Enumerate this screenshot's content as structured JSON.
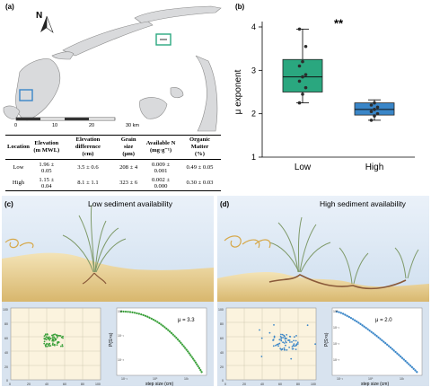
{
  "panels": {
    "a": "(a)",
    "b": "(b)",
    "c": "(c)",
    "d": "(d)"
  },
  "map": {
    "north_label": "N",
    "scale_ticks": [
      "0",
      "10",
      "20",
      "30 km"
    ]
  },
  "table": {
    "headers": [
      {
        "line1": "Location",
        "line2": ""
      },
      {
        "line1": "Elevation",
        "line2": "(m MWL)"
      },
      {
        "line1": "Elevation difference",
        "line2": "(cm)"
      },
      {
        "line1": "Grain size",
        "line2": "(μm)"
      },
      {
        "line1": "Available N",
        "line2": "(mg·g⁻¹)"
      },
      {
        "line1": "Organic Matter",
        "line2": "(%)"
      }
    ],
    "rows": [
      [
        "Low",
        "1.96 ± 0.05",
        "3.5 ± 0.6",
        "208 ± 4",
        "0.009 ± 0.001",
        "0.49 ± 0.05"
      ],
      [
        "High",
        "1.15 ± 0.04",
        "8.1 ± 1.1",
        "323 ± 6",
        "0.002 ± 0.000",
        "0.30 ± 0.03"
      ]
    ]
  },
  "chart_data": {
    "type": "box",
    "ylabel": "μ exponent",
    "categories": [
      "Low",
      "High"
    ],
    "ylim": [
      1,
      4
    ],
    "yticks": [
      1,
      2,
      3,
      4
    ],
    "significance": "**",
    "colors": [
      "#2aa77f",
      "#3a86c8"
    ],
    "boxes": [
      {
        "name": "Low",
        "min": 2.25,
        "q1": 2.5,
        "median": 2.85,
        "q3": 3.25,
        "max": 3.95,
        "points": [
          2.25,
          2.45,
          2.6,
          2.75,
          2.85,
          2.9,
          3.1,
          3.2,
          3.55,
          3.95
        ]
      },
      {
        "name": "High",
        "min": 1.85,
        "q1": 1.97,
        "median": 2.1,
        "q3": 2.25,
        "max": 2.32,
        "points": [
          1.85,
          1.95,
          2.0,
          2.05,
          2.1,
          2.15,
          2.2,
          2.25
        ]
      }
    ]
  },
  "scenes": {
    "c": {
      "title": "Low sediment availability",
      "mu_label": "μ = 3.3",
      "xlabel": "step size (cm)",
      "ylabel": "P(S>s)",
      "scatter_xticks": [
        "0",
        "20",
        "40",
        "60",
        "80",
        "100"
      ],
      "scatter_yticks": [
        "100",
        "80",
        "60",
        "40",
        "20",
        "0"
      ],
      "loglog_yticks": [
        "10⁰",
        "10⁻¹",
        "10⁻²"
      ],
      "loglog_xticks": [
        "10⁻¹",
        "10⁰",
        "10¹"
      ]
    },
    "d": {
      "title": "High sediment availability",
      "mu_label": "μ = 2.0",
      "xlabel": "step size (cm)",
      "ylabel": "P(S>s)",
      "scatter_xticks": [
        "0",
        "20",
        "40",
        "60",
        "80",
        "100"
      ],
      "scatter_yticks": [
        "100",
        "80",
        "60",
        "40",
        "20",
        "0"
      ],
      "loglog_yticks": [
        "10⁰",
        "10⁻¹",
        "10⁻²",
        "10⁻³"
      ],
      "loglog_xticks": [
        "10⁻¹",
        "10⁰",
        "10¹"
      ]
    }
  }
}
